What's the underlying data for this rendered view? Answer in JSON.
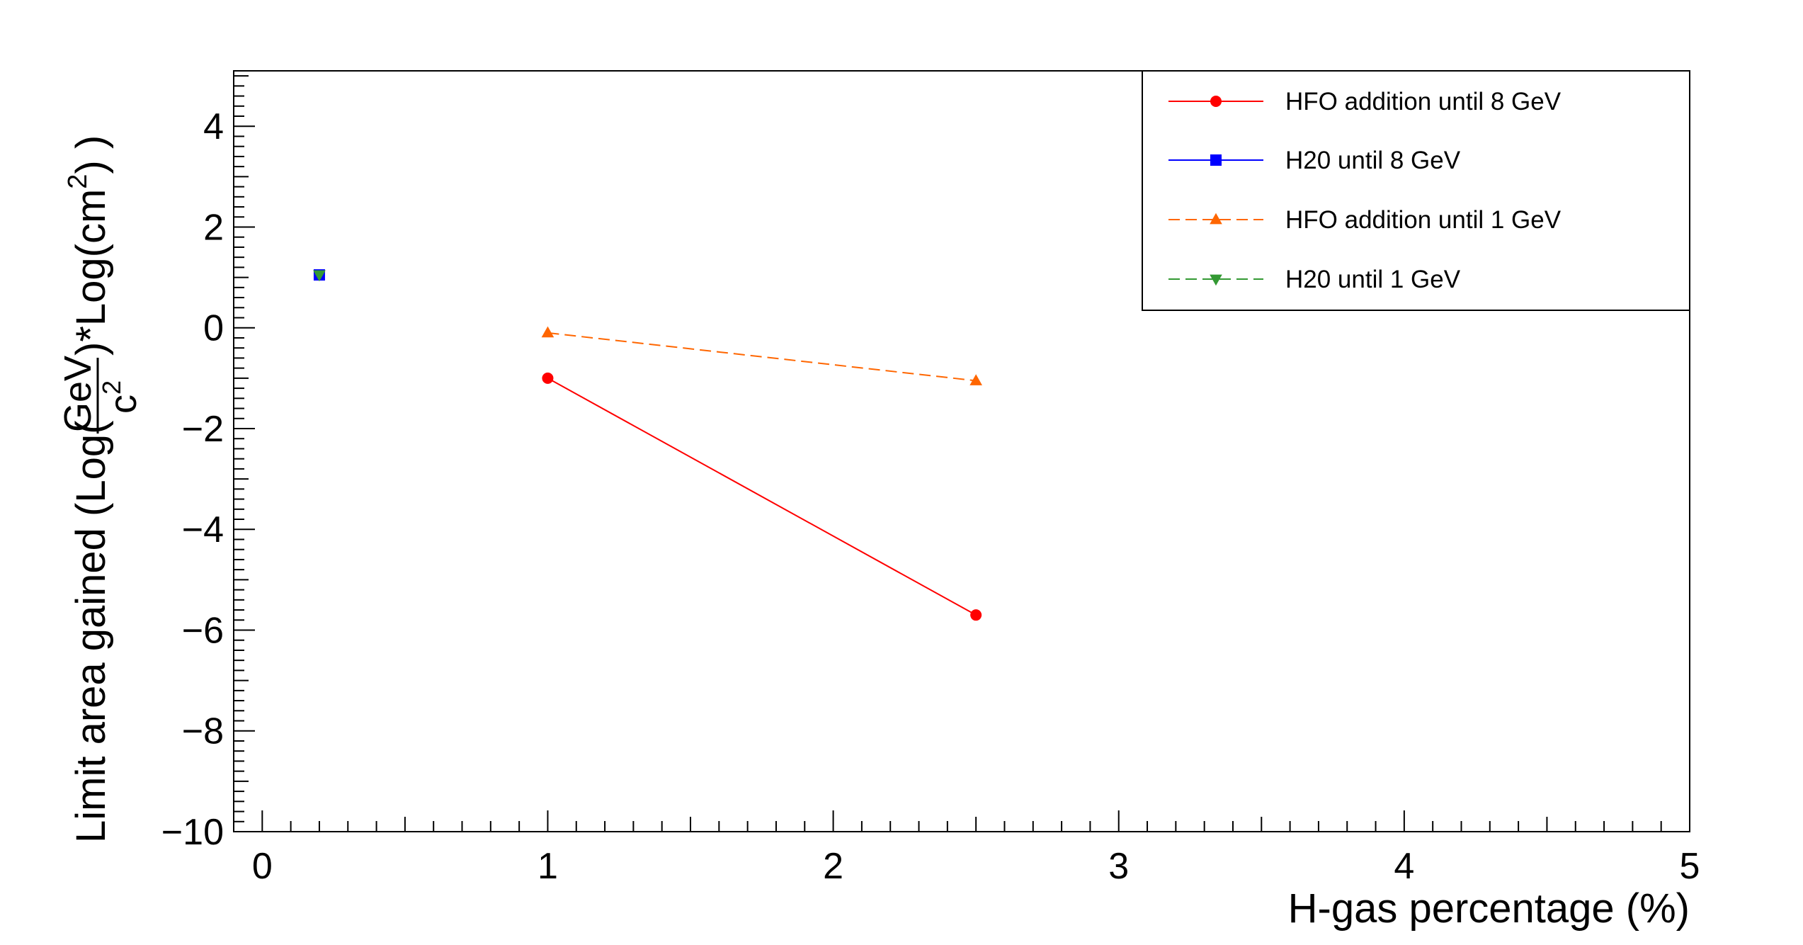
{
  "chart_data": {
    "type": "line",
    "xlabel": "H-gas percentage (%)",
    "ylabel": {
      "prefix": "Limit area gained (Log(",
      "frac_num": "GeV",
      "frac_den_base": "c",
      "frac_den_sup": "2",
      "middle": ")*Log(cm",
      "sup": "2",
      "suffix": ") )"
    },
    "xlim": [
      -0.1,
      5
    ],
    "ylim": [
      -10,
      5.1
    ],
    "x_ticks": [
      0,
      1,
      2,
      3,
      4,
      5
    ],
    "x_tick_labels": [
      "0",
      "1",
      "2",
      "3",
      "4",
      "5"
    ],
    "y_ticks": [
      4,
      2,
      0,
      -2,
      -4,
      -6,
      -8,
      -10
    ],
    "y_tick_labels": [
      "4",
      "2",
      "0",
      "−2",
      "−4",
      "−6",
      "−8",
      "−10"
    ],
    "grid": false,
    "legend_position": "top-right",
    "series": [
      {
        "name": "HFO addition until 8 GeV",
        "color": "#ff0000",
        "marker": "circle",
        "dash": "solid",
        "x": [
          1,
          2.5
        ],
        "y": [
          -1.0,
          -5.7
        ]
      },
      {
        "name": "H20 until 8 GeV",
        "color": "#0000ff",
        "marker": "square",
        "dash": "solid",
        "x": [
          0.2
        ],
        "y": [
          1.05
        ]
      },
      {
        "name": "HFO addition until 1 GeV",
        "color": "#ff6600",
        "marker": "triangle-up",
        "dash": "dashed",
        "x": [
          1,
          2.5
        ],
        "y": [
          -0.1,
          -1.05
        ]
      },
      {
        "name": "H20 until 1 GeV",
        "color": "#339933",
        "marker": "triangle-down",
        "dash": "dashed",
        "x": [
          0.2
        ],
        "y": [
          1.05
        ]
      }
    ]
  }
}
